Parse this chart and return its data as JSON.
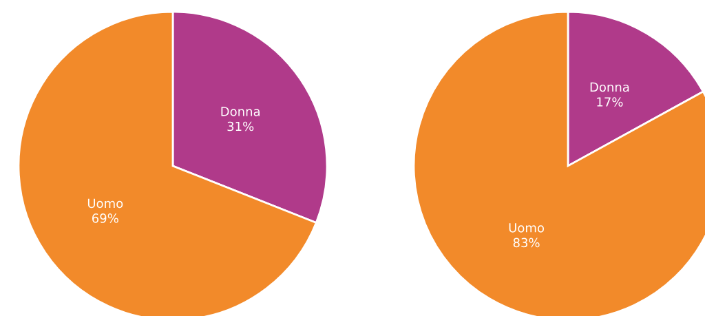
{
  "chart_data": [
    {
      "type": "pie",
      "categories": [
        "Donna",
        "Uomo"
      ],
      "values": [
        31,
        69
      ],
      "colors": [
        "#b03a8a",
        "#f28a2a"
      ],
      "value_labels": [
        "31%",
        "69%"
      ]
    },
    {
      "type": "pie",
      "categories": [
        "Donna",
        "Uomo"
      ],
      "values": [
        17,
        83
      ],
      "colors": [
        "#b03a8a",
        "#f28a2a"
      ],
      "value_labels": [
        "17%",
        "83%"
      ]
    }
  ]
}
